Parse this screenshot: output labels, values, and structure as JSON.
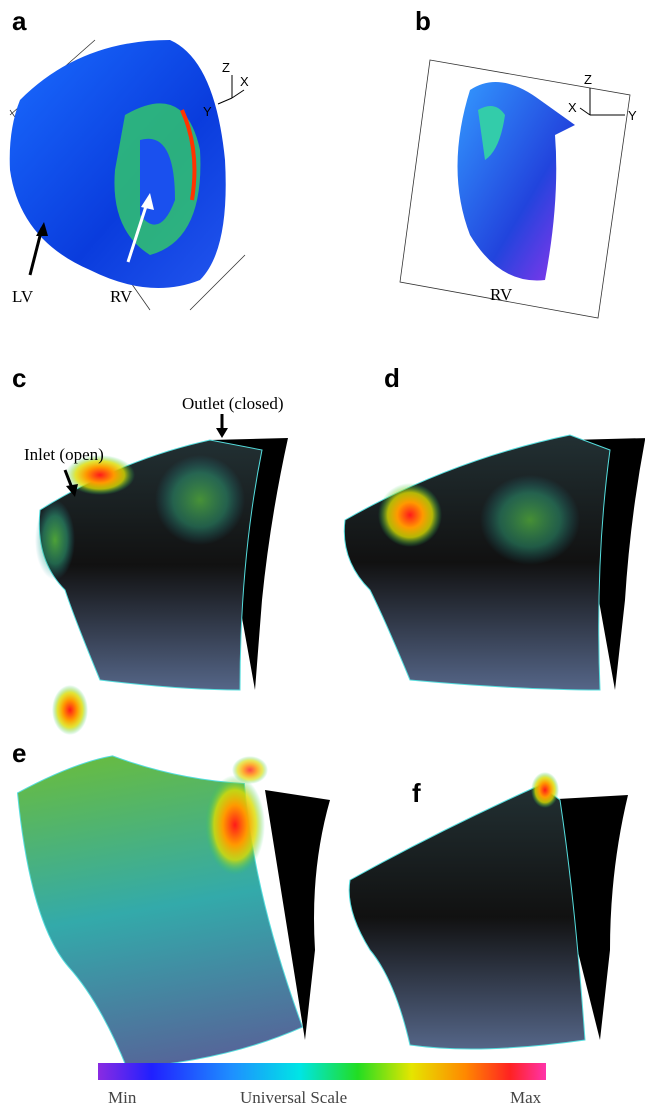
{
  "panels": [
    {
      "label": "a",
      "axes": [
        "Z",
        "Y",
        "X"
      ],
      "annotations": [
        "LV",
        "RV"
      ]
    },
    {
      "label": "b",
      "axes": [
        "Z",
        "X",
        "Y"
      ],
      "annotations": [
        "RV"
      ]
    },
    {
      "label": "c",
      "annotations": [
        "Outlet (closed)",
        "Inlet (open)"
      ]
    },
    {
      "label": "d"
    },
    {
      "label": "e"
    },
    {
      "label": "f"
    }
  ],
  "colorbar": {
    "min": "Min",
    "title": "Universal Scale",
    "max": "Max"
  }
}
